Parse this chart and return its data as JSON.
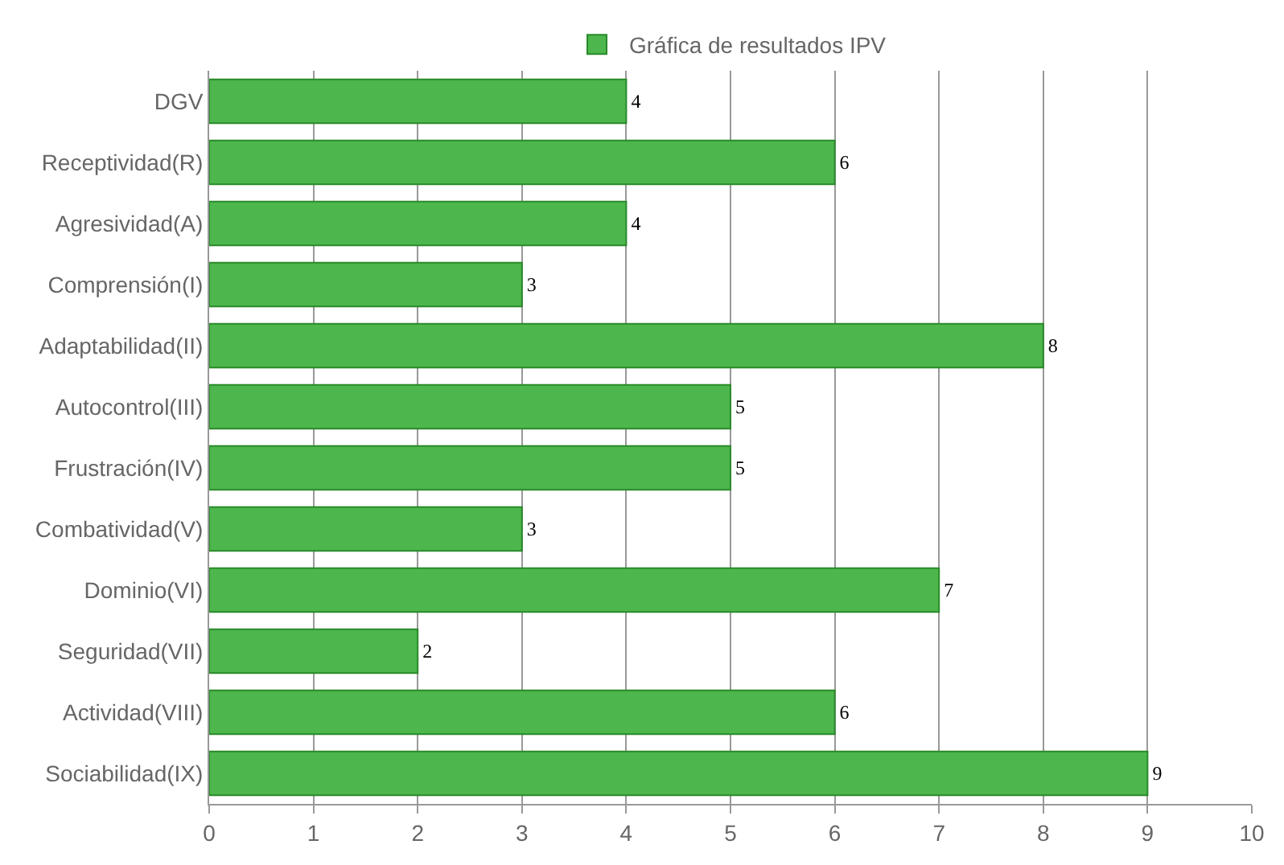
{
  "chart_data": {
    "type": "bar",
    "orientation": "horizontal",
    "categories": [
      "DGV",
      "Receptividad(R)",
      "Agresividad(A)",
      "Comprensión(I)",
      "Adaptabilidad(II)",
      "Autocontrol(III)",
      "Frustración(IV)",
      "Combatividad(V)",
      "Dominio(VI)",
      "Seguridad(VII)",
      "Actividad(VIII)",
      "Sociabilidad(IX)"
    ],
    "series": [
      {
        "name": "Gráfica de resultados IPV",
        "color": "#4db64d",
        "values": [
          4,
          6,
          4,
          3,
          8,
          5,
          5,
          3,
          7,
          2,
          6,
          9
        ]
      }
    ],
    "xlim": [
      0,
      10
    ],
    "xticks": [
      0,
      1,
      2,
      3,
      4,
      5,
      6,
      7,
      8,
      9,
      10
    ],
    "grid": "x",
    "legend": "top",
    "data_labels": true
  }
}
